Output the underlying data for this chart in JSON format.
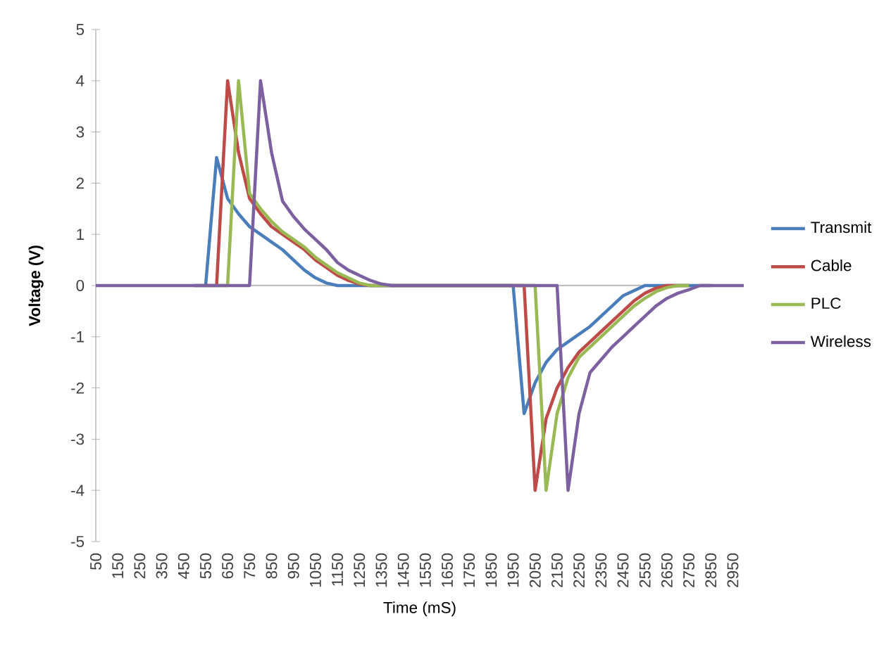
{
  "chart_data": {
    "type": "line",
    "xlabel": "Time (mS)",
    "ylabel": "Voltage (V)",
    "x": [
      50,
      100,
      150,
      200,
      250,
      300,
      350,
      400,
      450,
      500,
      550,
      600,
      650,
      700,
      750,
      800,
      850,
      900,
      950,
      1000,
      1050,
      1100,
      1150,
      1200,
      1250,
      1300,
      1350,
      1400,
      1450,
      1500,
      1550,
      1600,
      1650,
      1700,
      1750,
      1800,
      1850,
      1900,
      1950,
      2000,
      2050,
      2100,
      2150,
      2200,
      2250,
      2300,
      2350,
      2400,
      2450,
      2500,
      2550,
      2600,
      2650,
      2700,
      2750,
      2800,
      2850,
      2900,
      2950,
      3000
    ],
    "series": [
      {
        "name": "Transmit",
        "color": "#4a7ebb",
        "values": [
          null,
          null,
          null,
          null,
          null,
          null,
          null,
          null,
          null,
          0,
          0,
          2.5,
          1.7,
          1.4,
          1.15,
          1.0,
          0.85,
          0.7,
          0.5,
          0.3,
          0.15,
          0.05,
          0,
          0,
          0,
          0,
          0,
          0,
          0,
          0,
          0,
          0,
          0,
          0,
          0,
          0,
          0,
          0,
          0,
          -2.5,
          -1.9,
          -1.5,
          -1.25,
          -1.1,
          -0.95,
          -0.8,
          -0.6,
          -0.4,
          -0.2,
          -0.1,
          0,
          0,
          0,
          0,
          0,
          0,
          0,
          null,
          null,
          null
        ]
      },
      {
        "name": "Cable",
        "color": "#be4b48",
        "values": [
          null,
          null,
          null,
          null,
          null,
          null,
          null,
          null,
          null,
          null,
          0,
          0,
          4,
          2.6,
          1.7,
          1.4,
          1.15,
          1.0,
          0.85,
          0.7,
          0.5,
          0.35,
          0.2,
          0.1,
          0.03,
          0,
          0,
          0,
          0,
          0,
          0,
          0,
          0,
          0,
          0,
          0,
          0,
          0,
          0,
          0,
          -4,
          -2.6,
          -2.0,
          -1.6,
          -1.3,
          -1.1,
          -0.9,
          -0.7,
          -0.5,
          -0.3,
          -0.15,
          -0.05,
          0,
          0,
          0,
          null,
          null,
          null,
          null,
          null
        ]
      },
      {
        "name": "PLC",
        "color": "#98b954",
        "values": [
          null,
          null,
          null,
          null,
          null,
          null,
          null,
          null,
          null,
          null,
          null,
          0,
          0,
          4,
          1.8,
          1.5,
          1.25,
          1.05,
          0.9,
          0.75,
          0.55,
          0.4,
          0.25,
          0.15,
          0.05,
          0,
          0,
          0,
          0,
          0,
          0,
          0,
          0,
          0,
          0,
          0,
          0,
          0,
          0,
          0,
          0,
          -4,
          -2.5,
          -1.8,
          -1.4,
          -1.2,
          -1.0,
          -0.8,
          -0.6,
          -0.4,
          -0.25,
          -0.12,
          -0.04,
          0,
          0,
          null,
          null,
          null,
          null,
          null
        ]
      },
      {
        "name": "Wireless",
        "color": "#7d60a0",
        "values": [
          0,
          0,
          0,
          0,
          0,
          0,
          0,
          0,
          0,
          0,
          0,
          0,
          0,
          0,
          0,
          4,
          2.6,
          1.65,
          1.35,
          1.1,
          0.9,
          0.7,
          0.45,
          0.3,
          0.2,
          0.1,
          0.03,
          0,
          0,
          0,
          0,
          0,
          0,
          0,
          0,
          0,
          0,
          0,
          0,
          0,
          0,
          0,
          0,
          -4,
          -2.5,
          -1.7,
          -1.45,
          -1.2,
          -1.0,
          -0.8,
          -0.6,
          -0.4,
          -0.25,
          -0.15,
          -0.08,
          0,
          0,
          0,
          0,
          0
        ]
      }
    ],
    "xlim": [
      50,
      3000
    ],
    "xticks": [
      50,
      150,
      250,
      350,
      450,
      550,
      650,
      750,
      850,
      950,
      1050,
      1150,
      1250,
      1350,
      1450,
      1550,
      1650,
      1750,
      1850,
      1950,
      2050,
      2150,
      2250,
      2350,
      2450,
      2550,
      2650,
      2750,
      2850,
      2950
    ],
    "ylim": [
      -5,
      5
    ],
    "yticks": [
      -5,
      -4,
      -3,
      -2,
      -1,
      0,
      1,
      2,
      3,
      4,
      5
    ],
    "ref_lines": [
      {
        "axis": "y",
        "value": 0,
        "color": "#bfbfbf"
      }
    ],
    "grid": false,
    "legend": "right",
    "marker": "none",
    "line_style": "solid"
  }
}
